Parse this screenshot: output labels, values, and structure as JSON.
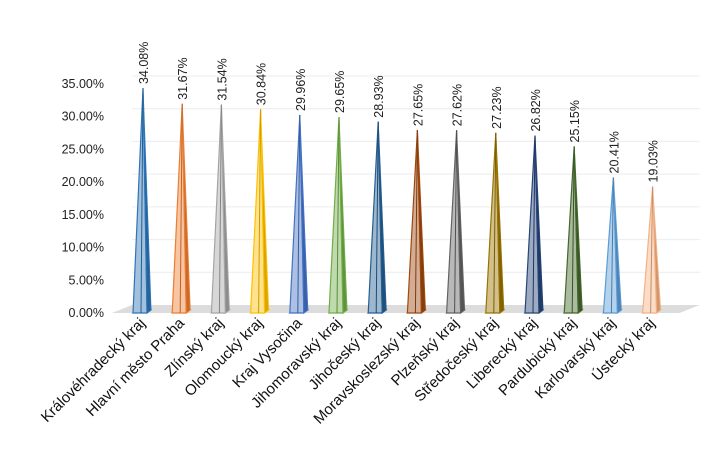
{
  "chart_data": {
    "type": "bar",
    "categories": [
      "Královéhradecký kraj",
      "Hlavní město Praha",
      "Zlínský kraj",
      "Olomoucký kraj",
      "Kraj Vysočina",
      "Jihomoravský kraj",
      "Jihočeský kraj",
      "Moravskoslezský kraj",
      "Plzeňský kraj",
      "Středočeský kraj",
      "Liberecký kraj",
      "Pardubický kraj",
      "Karlovarský kraj",
      "Ústecký kraj"
    ],
    "values": [
      34.08,
      31.67,
      31.54,
      30.84,
      29.96,
      29.65,
      28.93,
      27.65,
      27.62,
      27.23,
      26.82,
      25.15,
      20.41,
      19.03
    ],
    "data_labels": [
      "34.08%",
      "31.67%",
      "31.54%",
      "30.84%",
      "29.96%",
      "29.65%",
      "28.93%",
      "27.65%",
      "27.62%",
      "27.23%",
      "26.82%",
      "25.15%",
      "20.41%",
      "19.03%"
    ],
    "y_ticks": [
      "0.00%",
      "5.00%",
      "10.00%",
      "15.00%",
      "20.00%",
      "25.00%",
      "30.00%",
      "35.00%"
    ],
    "ylim": [
      0,
      35
    ],
    "title": "",
    "xlabel": "",
    "ylabel": "",
    "grid": true,
    "legend": "none",
    "colors": [
      "#2e75b6",
      "#ed7d31",
      "#a5a5a5",
      "#ffc000",
      "#4472c4",
      "#70ad47",
      "#255e91",
      "#9e480e",
      "#636363",
      "#997300",
      "#264478",
      "#43682b",
      "#5b9bd5",
      "#f4b183"
    ]
  }
}
